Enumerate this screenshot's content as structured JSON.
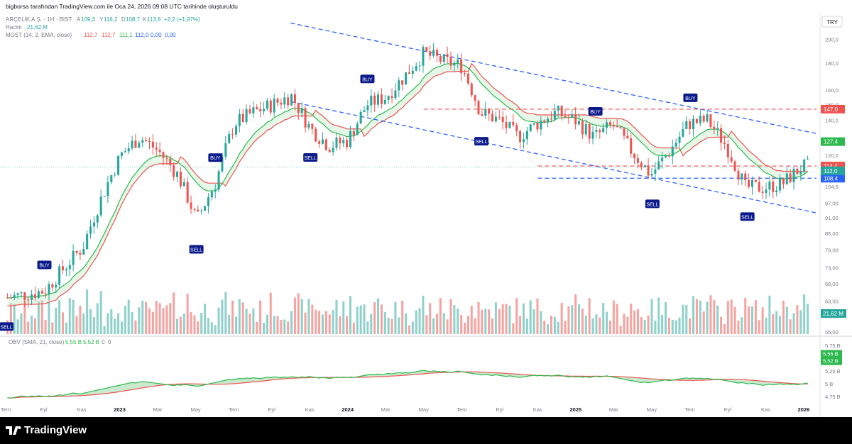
{
  "header": {
    "snapshot_text": "bigborsa tarafından TradingView.com ile Oca 24, 2026 09:08 UTC tarihinde oluşturuldu"
  },
  "legend": {
    "symbol": "ARÇELİK A.Ş. · 1H · BIST",
    "ohlc": {
      "open_label": "A",
      "open": "109,3",
      "high_label": "Y",
      "high": "116,2",
      "low_label": "D",
      "low": "108,7",
      "close_label": "K",
      "close": "113,8",
      "change": "+2,2 (+1,97%)"
    },
    "volume_label": "Hacim",
    "volume_value": "21,62 M",
    "most_label": "MOST (14, 2, EMA, close)",
    "most_values": [
      "112,7",
      "112,7",
      "111,1",
      "112,0",
      "0,00",
      "0,00"
    ],
    "obv_label": "OBV (SMA, 21, close)",
    "obv_values": [
      "5,55 B",
      "5,52 B",
      "0",
      "0"
    ]
  },
  "currency": "TRY",
  "footer": {
    "brand": "TradingView"
  },
  "colors": {
    "up": "#26a69a",
    "down": "#ef5350",
    "most_red": "#ef5350",
    "most_green": "#2db94d",
    "channel": "#2962ff",
    "resistance": "#ef5350",
    "support": "#2962ff",
    "signal_bg": "#0c1b8c",
    "vol_up": "#8fd1ca",
    "vol_down": "#f5a3a1"
  },
  "chart_data": {
    "type": "candlestick",
    "y_scale": "log",
    "price_axis_ticks": [
      "200,0",
      "180,0",
      "160,0",
      "150,0",
      "140,0",
      "127,4",
      "120,0",
      "114,4",
      "110,0",
      "108,4",
      "104,5",
      "97,00",
      "91,00",
      "85,00",
      "79,00",
      "73,00",
      "68,00",
      "63,00",
      "59,00",
      "55,00"
    ],
    "obv_axis_ticks": [
      "5,75 B",
      "5,55 B",
      "5,52 B",
      "5,25 B",
      "5 B",
      "4,75 B"
    ],
    "x_axis_ticks": [
      "Tem",
      "Eyl",
      "Kas",
      "2023",
      "Mar",
      "May",
      "Tem",
      "Eyl",
      "Kas",
      "2024",
      "Mar",
      "May",
      "Tem",
      "Eyl",
      "Kas",
      "2025",
      "Mar",
      "May",
      "Tem",
      "Eyl",
      "Kas",
      "2026"
    ],
    "price_labels": [
      {
        "value": "147,0",
        "color": "#ef5350"
      },
      {
        "value": "127,4",
        "color": "#2db94d"
      },
      {
        "value": "114,4",
        "color": "#ef5350"
      },
      {
        "value": "108,4",
        "color": "#2962ff"
      },
      {
        "value": "112,0",
        "color": "#26a69a"
      }
    ],
    "volume_label": "21,62 M",
    "obv_labels": [
      "5,55 B",
      "5,52 B"
    ],
    "signals": [
      {
        "text": "SELL",
        "x": "2022-07"
      },
      {
        "text": "BUY",
        "x": "2022-09"
      },
      {
        "text": "BUY",
        "x": "2023-06"
      },
      {
        "text": "SELL",
        "x": "2023-05"
      },
      {
        "text": "SELL",
        "x": "2023-11"
      },
      {
        "text": "BUY",
        "x": "2024-02"
      },
      {
        "text": "SELL",
        "x": "2024-08"
      },
      {
        "text": "BUY",
        "x": "2025-02"
      },
      {
        "text": "SELL",
        "x": "2025-05"
      },
      {
        "text": "BUY",
        "x": "2025-07"
      },
      {
        "text": "SELL",
        "x": "2025-10"
      }
    ],
    "close_path": [
      [
        "2022-07",
        64
      ],
      [
        "2022-09",
        66
      ],
      [
        "2022-11",
        80
      ],
      [
        "2023-01",
        120
      ],
      [
        "2023-02",
        130
      ],
      [
        "2023-03",
        122
      ],
      [
        "2023-04",
        110
      ],
      [
        "2023-05",
        90
      ],
      [
        "2023-06",
        106
      ],
      [
        "2023-07",
        138
      ],
      [
        "2023-08",
        145
      ],
      [
        "2023-09",
        150
      ],
      [
        "2023-10",
        156
      ],
      [
        "2023-11",
        135
      ],
      [
        "2023-12",
        125
      ],
      [
        "2024-01",
        128
      ],
      [
        "2024-02",
        150
      ],
      [
        "2024-03",
        155
      ],
      [
        "2024-04",
        170
      ],
      [
        "2024-05",
        188
      ],
      [
        "2024-06",
        182
      ],
      [
        "2024-07",
        178
      ],
      [
        "2024-08",
        145
      ],
      [
        "2024-09",
        140
      ],
      [
        "2024-10",
        130
      ],
      [
        "2024-11",
        138
      ],
      [
        "2024-12",
        145
      ],
      [
        "2025-01",
        140
      ],
      [
        "2025-02",
        130
      ],
      [
        "2025-03",
        137
      ],
      [
        "2025-04",
        122
      ],
      [
        "2025-05",
        110
      ],
      [
        "2025-06",
        122
      ],
      [
        "2025-07",
        138
      ],
      [
        "2025-08",
        140
      ],
      [
        "2025-09",
        125
      ],
      [
        "2025-10",
        104
      ],
      [
        "2025-11",
        104
      ],
      [
        "2025-12",
        106
      ],
      [
        "2026-01",
        114
      ]
    ],
    "last_close": 113.8
  }
}
